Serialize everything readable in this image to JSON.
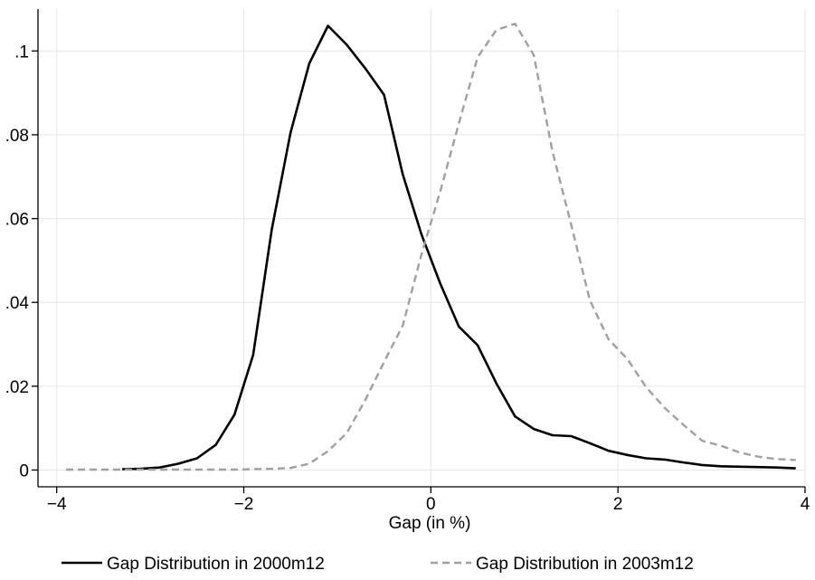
{
  "chart_data": {
    "type": "line",
    "title": "",
    "xlabel": "Gap (in %)",
    "ylabel": "",
    "xlim": [
      -4.2,
      4.0
    ],
    "ylim": [
      -0.004,
      0.11
    ],
    "xticks": [
      -4,
      -2,
      0,
      2,
      4
    ],
    "xtick_labels": [
      "−4",
      "−2",
      "0",
      "2",
      "4"
    ],
    "yticks": [
      0,
      0.02,
      0.04,
      0.06,
      0.08,
      0.1
    ],
    "ytick_labels": [
      "0",
      ".02",
      ".04",
      ".06",
      ".08",
      ".1"
    ],
    "grid": true,
    "legend_position": "bottom",
    "series": [
      {
        "name": "Gap Distribution in 2000m12",
        "color": "#000000",
        "dash": "solid",
        "x": [
          -3.3,
          -3.1,
          -2.9,
          -2.7,
          -2.5,
          -2.3,
          -2.1,
          -1.9,
          -1.7,
          -1.5,
          -1.3,
          -1.1,
          -0.9,
          -0.7,
          -0.5,
          -0.3,
          -0.1,
          0.1,
          0.3,
          0.5,
          0.7,
          0.9,
          1.1,
          1.3,
          1.5,
          1.7,
          1.9,
          2.1,
          2.3,
          2.5,
          2.7,
          2.9,
          3.1,
          3.3,
          3.5,
          3.7,
          3.9
        ],
        "y": [
          0.0002,
          0.0003,
          0.0006,
          0.0015,
          0.0028,
          0.006,
          0.0132,
          0.0275,
          0.0575,
          0.0805,
          0.097,
          0.106,
          0.1015,
          0.0958,
          0.0895,
          0.0705,
          0.0562,
          0.0445,
          0.0342,
          0.0298,
          0.0207,
          0.0128,
          0.0098,
          0.0083,
          0.0081,
          0.0064,
          0.0046,
          0.0036,
          0.0028,
          0.0025,
          0.0018,
          0.0012,
          0.0009,
          0.0008,
          0.0007,
          0.0006,
          0.0004
        ]
      },
      {
        "name": "Gap Distribution in 2003m12",
        "color": "#a0a0a0",
        "dash": "dashed",
        "x": [
          -3.9,
          -3.7,
          -3.5,
          -3.3,
          -3.1,
          -2.9,
          -2.7,
          -2.5,
          -2.3,
          -2.1,
          -1.9,
          -1.7,
          -1.5,
          -1.3,
          -1.1,
          -0.9,
          -0.7,
          -0.5,
          -0.3,
          -0.1,
          0.1,
          0.3,
          0.5,
          0.7,
          0.9,
          1.1,
          1.3,
          1.5,
          1.7,
          1.9,
          2.1,
          2.3,
          2.5,
          2.7,
          2.9,
          3.1,
          3.3,
          3.5,
          3.7,
          3.9
        ],
        "y": [
          0.0001,
          0.0001,
          0.0001,
          0.0001,
          0.0001,
          0.0001,
          0.0001,
          0.0001,
          0.0001,
          0.0001,
          0.0002,
          0.0003,
          0.0005,
          0.0015,
          0.0045,
          0.0088,
          0.0168,
          0.0258,
          0.0345,
          0.0515,
          0.0665,
          0.0828,
          0.0985,
          0.105,
          0.1065,
          0.099,
          0.076,
          0.0585,
          0.0405,
          0.0312,
          0.0265,
          0.0198,
          0.0148,
          0.0108,
          0.007,
          0.0058,
          0.0042,
          0.0032,
          0.0026,
          0.0024
        ]
      }
    ]
  }
}
